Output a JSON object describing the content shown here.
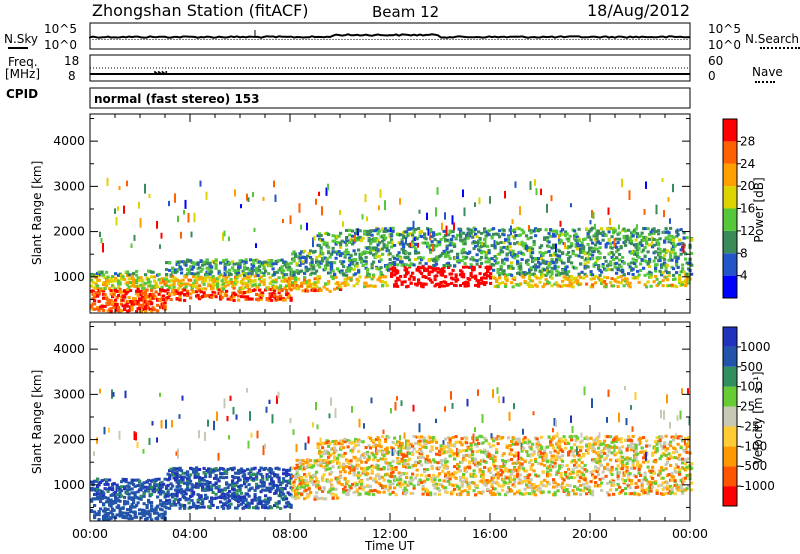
{
  "header": {
    "station": "Zhongshan Station (fitACF)",
    "beam": "Beam 12",
    "date": "18/Aug/2012"
  },
  "noise_panel": {
    "left_label": "N.Sky",
    "right_label": "N.Search",
    "left_ticks": [
      "10^5",
      "10^0"
    ],
    "right_ticks": [
      "10^5",
      "10^0"
    ]
  },
  "freq_panel": {
    "left_label_lines": [
      "Freq.",
      "[MHz]"
    ],
    "right_label": "Nave",
    "left_ticks": [
      "18",
      "8"
    ],
    "right_ticks": [
      "60",
      "0"
    ]
  },
  "cpid": {
    "label": "CPID",
    "mode": "normal (fast stereo) 153"
  },
  "x_axis": {
    "title": "Time UT",
    "ticks": [
      "00:00",
      "04:00",
      "08:00",
      "12:00",
      "16:00",
      "20:00",
      "00:00"
    ]
  },
  "colors": {
    "power_scale": [
      "#0000ff",
      "#2255c8",
      "#3a8a5a",
      "#55c83a",
      "#dcd400",
      "#ffa000",
      "#ff6000",
      "#ff0000"
    ],
    "velocity_scale": [
      "#ff0000",
      "#ff5500",
      "#ff9900",
      "#ffcc33",
      "#c8c8b4",
      "#66cc33",
      "#2f8f5f",
      "#2255aa",
      "#2233bb"
    ]
  },
  "chart_data": [
    {
      "type": "heatmap",
      "title": "Power",
      "xlabel": "Time UT",
      "ylabel": "Slant Range [km]",
      "y_ticks": [
        1000,
        2000,
        3000,
        4000
      ],
      "ylim": [
        200,
        4600
      ],
      "x_range_hours": [
        0,
        24
      ],
      "colorbar": {
        "label": "Power [dB]",
        "ticks": [
          4,
          8,
          12,
          16,
          20,
          24,
          28
        ],
        "range": [
          0,
          32
        ]
      }
    },
    {
      "type": "heatmap",
      "title": "Velocity",
      "xlabel": "Time UT",
      "ylabel": "Slant Range [km]",
      "y_ticks": [
        1000,
        2000,
        3000,
        4000
      ],
      "ylim": [
        200,
        4600
      ],
      "x_range_hours": [
        0,
        24
      ],
      "colorbar": {
        "label": "Velocity [m s⁻¹]",
        "ticks": [
          1000,
          500,
          100,
          25,
          -25,
          -100,
          -500,
          -1000
        ]
      }
    }
  ]
}
